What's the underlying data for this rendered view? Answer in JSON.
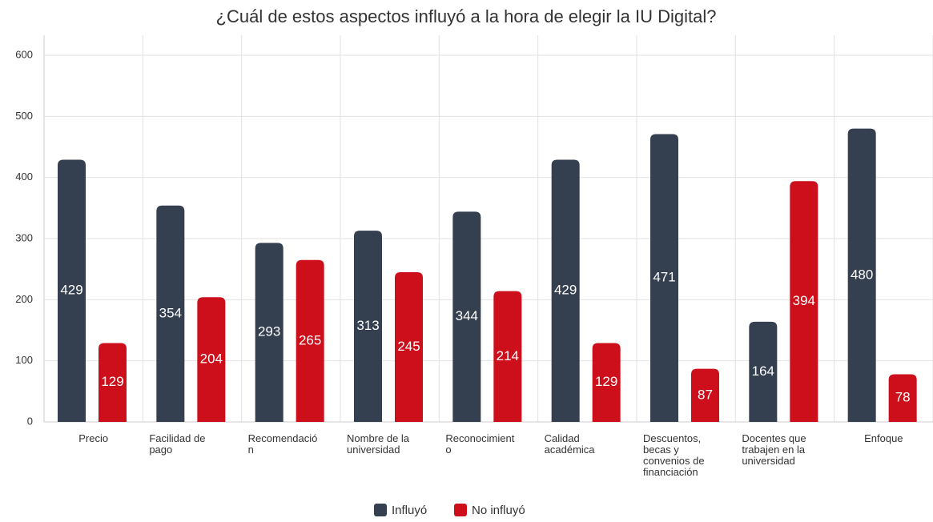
{
  "chart_data": {
    "type": "bar",
    "title": "¿Cuál de estos aspectos influyó a la hora de elegir la IU Digital?",
    "categories": [
      "Precio",
      "Facilidad de pago",
      "Recomendación",
      "Nombre de la universidad",
      "Reconocimiento",
      "Calidad académica",
      "Descuentos, becas y convenios de financiación",
      "Docentes que trabajen en la universidad",
      "Enfoque"
    ],
    "series": [
      {
        "name": "Influyó",
        "color": "#343f50",
        "values": [
          429,
          354,
          293,
          313,
          344,
          429,
          471,
          164,
          480
        ]
      },
      {
        "name": "No influyó",
        "color": "#cc0f1a",
        "values": [
          129,
          204,
          265,
          245,
          214,
          129,
          87,
          394,
          78
        ]
      }
    ],
    "ylim": [
      0,
      600
    ],
    "yticks": [
      0,
      100,
      200,
      300,
      400,
      500,
      600
    ],
    "grid": true,
    "legend": "bottom"
  }
}
